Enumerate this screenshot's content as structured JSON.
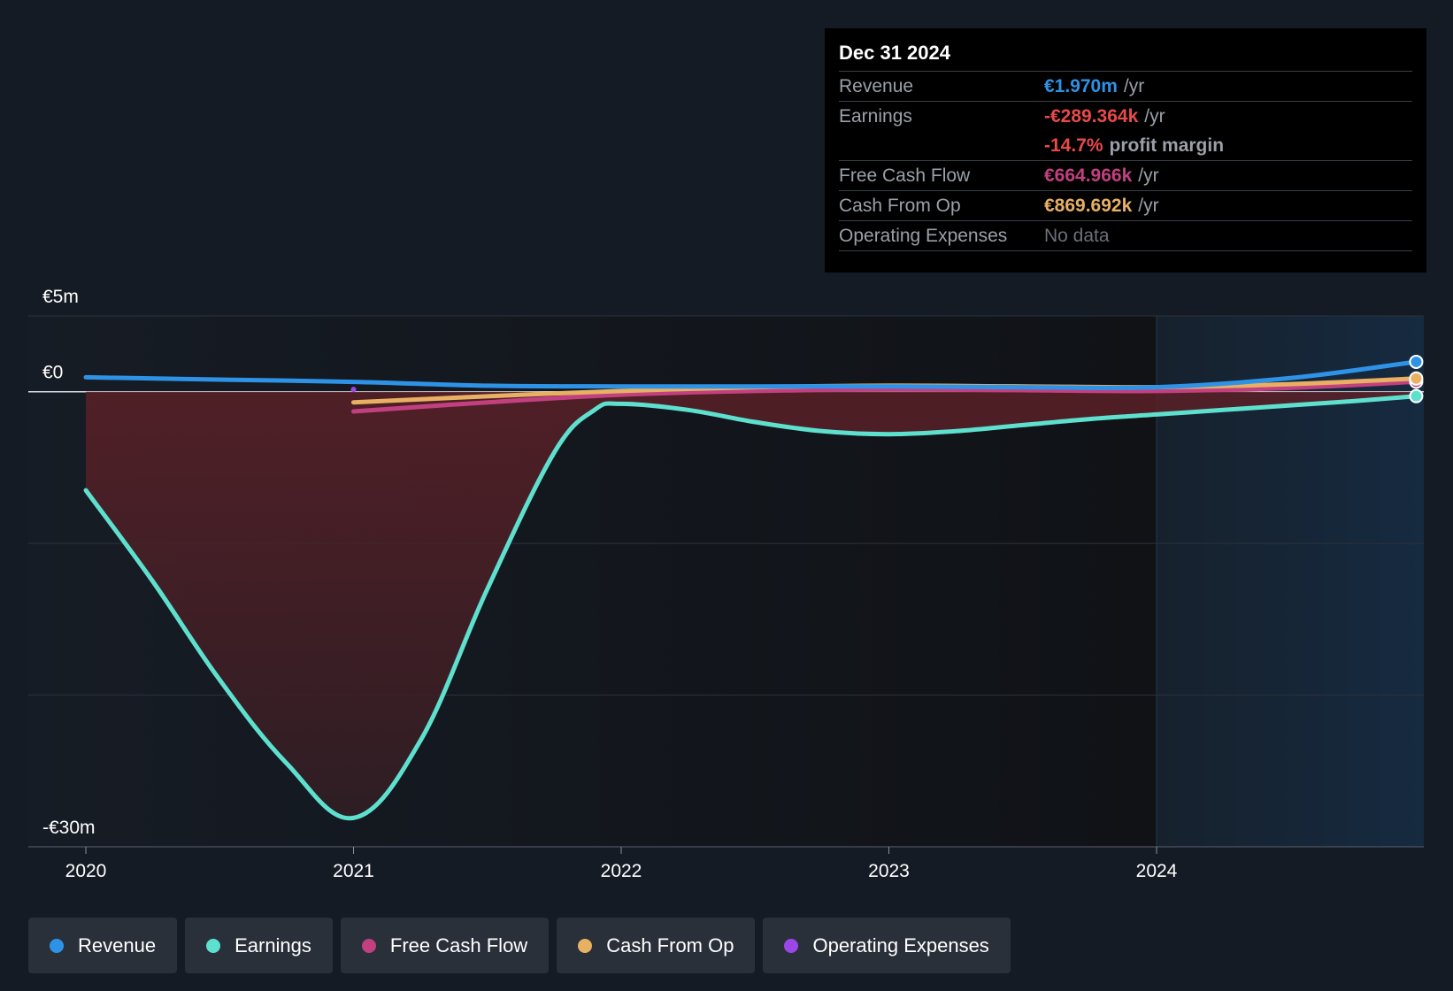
{
  "colors": {
    "revenue": "#2e93e6",
    "earnings": "#5ee0cf",
    "free_cash_flow": "#c2407f",
    "cash_from_op": "#e8b063",
    "operating_expenses": "#9b47e8",
    "negative": "#e84a4a",
    "muted": "#6b7078"
  },
  "tooltip": {
    "date": "Dec 31 2024",
    "rows": [
      {
        "label": "Revenue",
        "value": "€1.970m",
        "unit": "/yr"
      },
      {
        "label": "Earnings",
        "value": "-€289.364k",
        "unit": "/yr"
      },
      {
        "label": "",
        "value": "-14.7%",
        "unit": "profit margin"
      },
      {
        "label": "Free Cash Flow",
        "value": "€664.966k",
        "unit": "/yr"
      },
      {
        "label": "Cash From Op",
        "value": "€869.692k",
        "unit": "/yr"
      },
      {
        "label": "Operating Expenses",
        "value": "No data",
        "unit": ""
      }
    ]
  },
  "legend": [
    {
      "label": "Revenue",
      "icon": "revenue-dot-icon"
    },
    {
      "label": "Earnings",
      "icon": "earnings-dot-icon"
    },
    {
      "label": "Free Cash Flow",
      "icon": "free-cash-flow-dot-icon"
    },
    {
      "label": "Cash From Op",
      "icon": "cash-from-op-dot-icon"
    },
    {
      "label": "Operating Expenses",
      "icon": "operating-expenses-dot-icon"
    }
  ],
  "chart_data": {
    "type": "line",
    "title": "",
    "xlabel": "",
    "ylabel": "",
    "ylim": [
      -30,
      5
    ],
    "xlim": [
      2019.97,
      2024.97
    ],
    "y_tick_labels": [
      {
        "value": 5,
        "label": "€5m"
      },
      {
        "value": 0,
        "label": "€0"
      },
      {
        "value": -30,
        "label": "-€30m"
      }
    ],
    "x_ticks": [
      2020,
      2021,
      2022,
      2023,
      2024
    ],
    "x_tick_labels": [
      "2020",
      "2021",
      "2022",
      "2023",
      "2024"
    ],
    "gridlines_y": [
      5,
      0,
      -10,
      -20,
      -30
    ],
    "highlight_region": [
      2024,
      2024.97
    ],
    "series": [
      {
        "name": "Revenue",
        "key": "revenue",
        "x": [
          2020,
          2020.5,
          2021,
          2021.5,
          2022,
          2022.5,
          2023,
          2023.5,
          2024,
          2024.5,
          2024.97
        ],
        "values": [
          0.95,
          0.8,
          0.65,
          0.4,
          0.35,
          0.35,
          0.35,
          0.3,
          0.3,
          0.9,
          1.97
        ]
      },
      {
        "name": "Earnings",
        "key": "earnings",
        "x": [
          2020,
          2020.25,
          2020.5,
          2020.75,
          2021,
          2021.25,
          2021.5,
          2021.75,
          2021.9,
          2022,
          2022.25,
          2022.5,
          2022.75,
          2023,
          2023.25,
          2023.5,
          2023.75,
          2024,
          2024.25,
          2024.5,
          2024.75,
          2024.97
        ],
        "values": [
          -6.5,
          -12.5,
          -19,
          -24.5,
          -28.1,
          -23,
          -13,
          -4,
          -1.2,
          -0.8,
          -1.2,
          -2.0,
          -2.6,
          -2.8,
          -2.6,
          -2.2,
          -1.8,
          -1.5,
          -1.2,
          -0.9,
          -0.6,
          -0.29
        ]
      },
      {
        "name": "Free Cash Flow",
        "key": "free_cash_flow",
        "x": [
          2021,
          2021.5,
          2022,
          2022.5,
          2023,
          2023.5,
          2024,
          2024.5,
          2024.97
        ],
        "values": [
          -1.3,
          -0.7,
          -0.2,
          0.05,
          0.15,
          0.1,
          0.05,
          0.25,
          0.66
        ]
      },
      {
        "name": "Cash From Op",
        "key": "cash_from_op",
        "x": [
          2021,
          2021.5,
          2022,
          2022.5,
          2023,
          2023.5,
          2024,
          2024.5,
          2024.97
        ],
        "values": [
          -0.7,
          -0.3,
          0.05,
          0.3,
          0.4,
          0.35,
          0.3,
          0.5,
          0.87
        ]
      },
      {
        "name": "Operating Expenses",
        "key": "operating_expenses",
        "x": [
          2021
        ],
        "values": [
          0.15
        ]
      }
    ]
  }
}
